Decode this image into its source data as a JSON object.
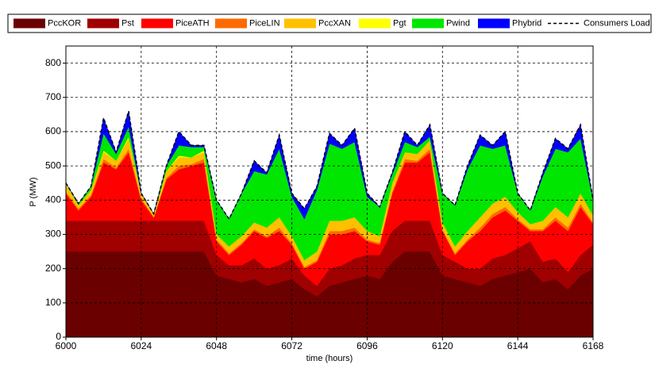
{
  "chart_data": {
    "type": "stacked_area",
    "xlabel": "time (hours)",
    "ylabel": "P (MW)",
    "x": [
      6000,
      6004,
      6008,
      6012,
      6016,
      6020,
      6024,
      6028,
      6032,
      6036,
      6040,
      6044,
      6048,
      6052,
      6056,
      6060,
      6064,
      6068,
      6072,
      6076,
      6080,
      6084,
      6088,
      6092,
      6096,
      6100,
      6104,
      6108,
      6112,
      6116,
      6120,
      6124,
      6128,
      6132,
      6136,
      6140,
      6144,
      6148,
      6152,
      6156,
      6160,
      6164,
      6168
    ],
    "xlim": [
      6000,
      6168
    ],
    "xticks": [
      6000,
      6024,
      6048,
      6072,
      6096,
      6120,
      6144,
      6168
    ],
    "ylim": [
      0,
      850
    ],
    "yticks": [
      0,
      100,
      200,
      300,
      400,
      500,
      600,
      700,
      800
    ],
    "grid": true,
    "grid_style": "dashed",
    "series": [
      {
        "name": "PccKOR",
        "color": "#6b0000",
        "values": [
          250,
          250,
          250,
          250,
          250,
          250,
          250,
          250,
          250,
          250,
          250,
          250,
          180,
          170,
          160,
          170,
          150,
          160,
          170,
          140,
          120,
          150,
          160,
          170,
          180,
          170,
          220,
          250,
          250,
          250,
          180,
          170,
          160,
          150,
          170,
          180,
          190,
          200,
          160,
          170,
          140,
          180,
          200
        ]
      },
      {
        "name": "Pst",
        "color": "#a00000",
        "values": [
          90,
          90,
          90,
          90,
          90,
          90,
          90,
          90,
          90,
          90,
          90,
          90,
          60,
          40,
          50,
          60,
          50,
          50,
          60,
          40,
          30,
          50,
          50,
          60,
          60,
          70,
          90,
          90,
          90,
          90,
          60,
          50,
          40,
          50,
          60,
          60,
          70,
          80,
          60,
          60,
          50,
          60,
          70
        ]
      },
      {
        "name": "PiceATH",
        "color": "#ff0000",
        "values": [
          80,
          30,
          70,
          170,
          150,
          200,
          60,
          10,
          120,
          150,
          160,
          170,
          40,
          30,
          60,
          80,
          90,
          100,
          40,
          20,
          70,
          100,
          90,
          80,
          40,
          30,
          110,
          170,
          170,
          200,
          70,
          20,
          80,
          110,
          120,
          130,
          80,
          30,
          90,
          110,
          120,
          140,
          60
        ]
      },
      {
        "name": "PiceLIN",
        "color": "#ff6a00",
        "values": [
          5,
          5,
          5,
          10,
          5,
          10,
          5,
          0,
          5,
          10,
          5,
          10,
          5,
          5,
          5,
          5,
          5,
          10,
          5,
          5,
          5,
          10,
          10,
          10,
          5,
          5,
          5,
          10,
          5,
          10,
          5,
          5,
          5,
          10,
          10,
          10,
          5,
          5,
          5,
          10,
          10,
          10,
          5
        ]
      },
      {
        "name": "PccXAN",
        "color": "#ffc000",
        "values": [
          25,
          10,
          15,
          20,
          20,
          30,
          15,
          10,
          20,
          25,
          20,
          20,
          15,
          20,
          20,
          20,
          25,
          30,
          20,
          20,
          25,
          30,
          30,
          30,
          25,
          20,
          25,
          20,
          20,
          25,
          20,
          20,
          25,
          30,
          30,
          30,
          20,
          15,
          25,
          30,
          30,
          30,
          20
        ]
      },
      {
        "name": "Pgt",
        "color": "#ffff00",
        "values": [
          0,
          0,
          0,
          5,
          0,
          5,
          0,
          0,
          0,
          5,
          0,
          5,
          0,
          0,
          0,
          0,
          0,
          0,
          0,
          0,
          0,
          0,
          0,
          0,
          0,
          0,
          0,
          0,
          0,
          0,
          0,
          0,
          0,
          0,
          0,
          0,
          0,
          0,
          0,
          0,
          0,
          0,
          0
        ]
      },
      {
        "name": "Pwind",
        "color": "#00e600",
        "values": [
          0,
          5,
          10,
          50,
          20,
          30,
          0,
          0,
          15,
          30,
          30,
          10,
          100,
          80,
          125,
          150,
          155,
          200,
          115,
          120,
          180,
          225,
          210,
          220,
          100,
          85,
          25,
          30,
          20,
          10,
          85,
          120,
          180,
          210,
          160,
          150,
          55,
          40,
          130,
          170,
          190,
          160,
          45
        ]
      },
      {
        "name": "Phybrid",
        "color": "#0000ff",
        "values": [
          0,
          0,
          0,
          45,
          5,
          45,
          0,
          0,
          0,
          40,
          5,
          5,
          0,
          0,
          0,
          30,
          5,
          40,
          10,
          30,
          10,
          30,
          10,
          40,
          10,
          0,
          5,
          30,
          5,
          35,
          0,
          0,
          10,
          30,
          10,
          40,
          0,
          0,
          10,
          30,
          10,
          40,
          0
        ]
      }
    ],
    "load": {
      "name": "Consumers Load",
      "color": "#000000",
      "style": "dashed",
      "values": [
        450,
        390,
        440,
        640,
        540,
        660,
        420,
        360,
        500,
        600,
        560,
        560,
        400,
        345,
        420,
        515,
        480,
        590,
        420,
        375,
        440,
        595,
        560,
        610,
        420,
        380,
        480,
        600,
        560,
        620,
        420,
        385,
        500,
        590,
        560,
        600,
        420,
        370,
        480,
        580,
        550,
        620,
        400
      ]
    }
  }
}
